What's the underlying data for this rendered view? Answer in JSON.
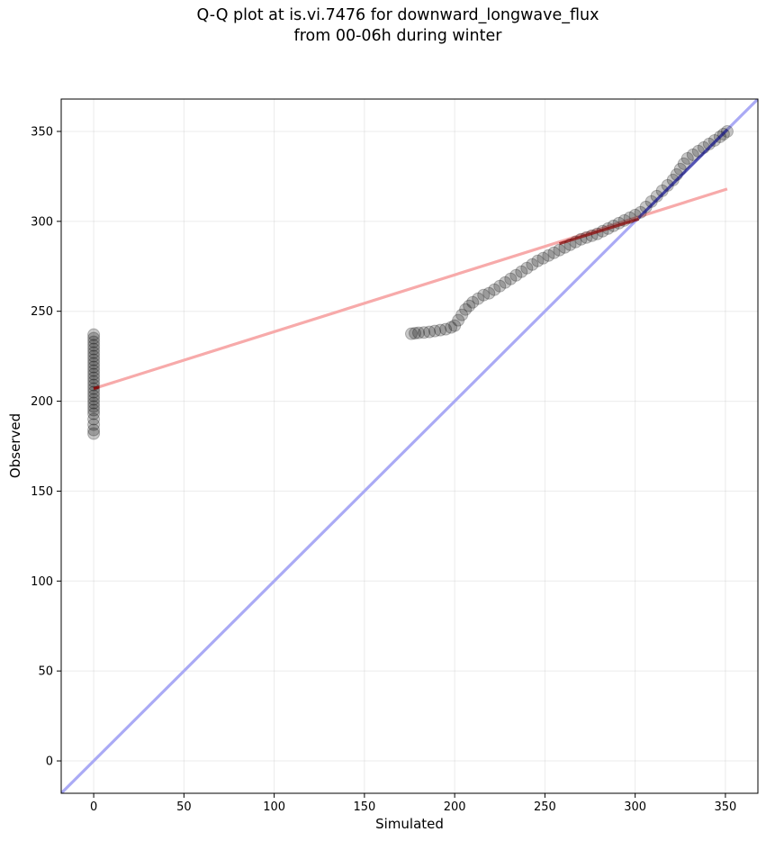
{
  "chart_data": {
    "type": "scatter",
    "title": "Q-Q plot at is.vi.7476 for downward_longwave_flux\nfrom 00-06h during winter",
    "xlabel": "Simulated",
    "ylabel": "Observed",
    "xlim": [
      -18,
      368
    ],
    "ylim": [
      -18,
      368
    ],
    "xticks": [
      0,
      50,
      100,
      150,
      200,
      250,
      300,
      350
    ],
    "yticks": [
      0,
      50,
      100,
      150,
      200,
      250,
      300,
      350
    ],
    "grid": true,
    "colors": {
      "points": "#000000",
      "one_to_one_line": "#aaaaf5",
      "fit_line": "#f7aaaa",
      "overlap_red": "#8b0000",
      "overlap_blue": "#1a1a8b"
    },
    "points": [
      [
        0,
        182
      ],
      [
        0,
        184
      ],
      [
        0,
        187
      ],
      [
        0,
        190
      ],
      [
        0,
        193
      ],
      [
        0,
        195
      ],
      [
        0,
        197
      ],
      [
        0,
        199
      ],
      [
        0,
        201
      ],
      [
        0,
        203
      ],
      [
        0,
        205
      ],
      [
        0,
        207
      ],
      [
        0,
        209
      ],
      [
        0,
        211
      ],
      [
        0,
        213
      ],
      [
        0,
        215
      ],
      [
        0,
        217
      ],
      [
        0,
        219
      ],
      [
        0,
        221
      ],
      [
        0,
        223
      ],
      [
        0,
        225
      ],
      [
        0,
        227
      ],
      [
        0,
        229
      ],
      [
        0,
        231
      ],
      [
        0,
        233
      ],
      [
        0,
        235
      ],
      [
        0,
        237
      ],
      [
        176,
        237.5
      ],
      [
        178,
        237.8
      ],
      [
        180,
        238
      ],
      [
        183,
        238.2
      ],
      [
        186,
        238.5
      ],
      [
        189,
        239
      ],
      [
        192,
        239.5
      ],
      [
        195,
        240
      ],
      [
        198,
        241
      ],
      [
        200,
        242
      ],
      [
        202,
        245
      ],
      [
        204,
        248
      ],
      [
        206,
        251
      ],
      [
        208,
        253
      ],
      [
        210,
        255
      ],
      [
        213,
        257
      ],
      [
        216,
        259
      ],
      [
        219,
        260
      ],
      [
        222,
        262
      ],
      [
        225,
        264
      ],
      [
        228,
        266
      ],
      [
        231,
        268
      ],
      [
        234,
        270
      ],
      [
        237,
        272
      ],
      [
        240,
        274
      ],
      [
        243,
        276
      ],
      [
        246,
        278
      ],
      [
        249,
        279.5
      ],
      [
        252,
        281
      ],
      [
        255,
        282.5
      ],
      [
        258,
        284
      ],
      [
        261,
        285.5
      ],
      [
        264,
        287
      ],
      [
        267,
        288.5
      ],
      [
        270,
        290
      ],
      [
        273,
        291
      ],
      [
        276,
        292
      ],
      [
        279,
        293
      ],
      [
        282,
        294.5
      ],
      [
        285,
        296
      ],
      [
        288,
        297.5
      ],
      [
        291,
        299
      ],
      [
        294,
        300.5
      ],
      [
        297,
        302
      ],
      [
        300,
        303.5
      ],
      [
        303,
        305
      ],
      [
        306,
        308
      ],
      [
        309,
        311
      ],
      [
        312,
        314
      ],
      [
        315,
        317
      ],
      [
        318,
        320
      ],
      [
        321,
        323
      ],
      [
        323,
        326
      ],
      [
        325,
        329
      ],
      [
        327,
        332
      ],
      [
        329,
        335
      ],
      [
        332,
        337
      ],
      [
        335,
        339
      ],
      [
        338,
        341
      ],
      [
        341,
        343
      ],
      [
        344,
        345
      ],
      [
        347,
        347
      ],
      [
        349,
        348.5
      ],
      [
        351,
        350
      ]
    ],
    "fit_line": [
      [
        0,
        207
      ],
      [
        351,
        318
      ]
    ],
    "one_to_one_line": [
      [
        -18,
        -18
      ],
      [
        368,
        368
      ]
    ]
  }
}
